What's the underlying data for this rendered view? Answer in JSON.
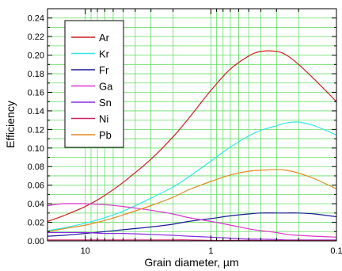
{
  "chart_data": {
    "type": "line",
    "title": "",
    "xlabel": "Grain diameter, µm",
    "ylabel": "Efficiency",
    "x_scale": "log",
    "x_reversed": true,
    "xlim": [
      20,
      0.1
    ],
    "ylim": [
      0,
      0.25
    ],
    "grid": true,
    "legend_position": "top-left",
    "x_tick_labels": [
      {
        "value": 10,
        "label": "10"
      },
      {
        "value": 1,
        "label": "1"
      },
      {
        "value": 0.1,
        "label": "0.1"
      }
    ],
    "y_tick_labels": [
      "0.00",
      "0.02",
      "0.04",
      "0.06",
      "0.08",
      "0.10",
      "0.12",
      "0.14",
      "0.16",
      "0.18",
      "0.20",
      "0.22",
      "0.24"
    ],
    "x": [
      20,
      15,
      10,
      7,
      5,
      3,
      2,
      1.5,
      1,
      0.7,
      0.5,
      0.4,
      0.3,
      0.25,
      0.2,
      0.15,
      0.1
    ],
    "series": [
      {
        "name": "Ar",
        "color": "#cc2020",
        "values": [
          0.021,
          0.027,
          0.037,
          0.049,
          0.063,
          0.088,
          0.112,
          0.132,
          0.162,
          0.185,
          0.199,
          0.204,
          0.204,
          0.2,
          0.19,
          0.174,
          0.15
        ]
      },
      {
        "name": "Kr",
        "color": "#33e6e6",
        "values": [
          0.011,
          0.014,
          0.019,
          0.025,
          0.032,
          0.046,
          0.058,
          0.069,
          0.086,
          0.101,
          0.113,
          0.119,
          0.124,
          0.127,
          0.128,
          0.124,
          0.114
        ]
      },
      {
        "name": "Fr",
        "color": "#1a1a99",
        "values": [
          0.005,
          0.006,
          0.008,
          0.01,
          0.012,
          0.015,
          0.018,
          0.021,
          0.024,
          0.027,
          0.029,
          0.03,
          0.03,
          0.03,
          0.03,
          0.029,
          0.026
        ]
      },
      {
        "name": "Ga",
        "color": "#dd33cc",
        "values": [
          0.038,
          0.04,
          0.04,
          0.039,
          0.037,
          0.033,
          0.029,
          0.025,
          0.021,
          0.017,
          0.013,
          0.011,
          0.009,
          0.007,
          0.006,
          0.005,
          0.004
        ]
      },
      {
        "name": "Sn",
        "color": "#8a2be2",
        "values": [
          0.009,
          0.009,
          0.009,
          0.008,
          0.008,
          0.007,
          0.006,
          0.005,
          0.004,
          0.003,
          0.002,
          0.002,
          0.0015,
          0.001,
          0.001,
          0.001,
          0.001
        ]
      },
      {
        "name": "Ni",
        "color": "#cc2266",
        "values": [
          0.001,
          0.001,
          0.001,
          0.001,
          0.001,
          0.001,
          0.001,
          0.001,
          0.0005,
          0.0005,
          0.0005,
          0.0005,
          0.0005,
          0.0005,
          0.0005,
          0.0005,
          0.0005
        ]
      },
      {
        "name": "Pb",
        "color": "#e08a20",
        "values": [
          0.01,
          0.013,
          0.017,
          0.022,
          0.028,
          0.038,
          0.047,
          0.055,
          0.064,
          0.071,
          0.075,
          0.076,
          0.077,
          0.076,
          0.073,
          0.067,
          0.056
        ]
      }
    ]
  }
}
